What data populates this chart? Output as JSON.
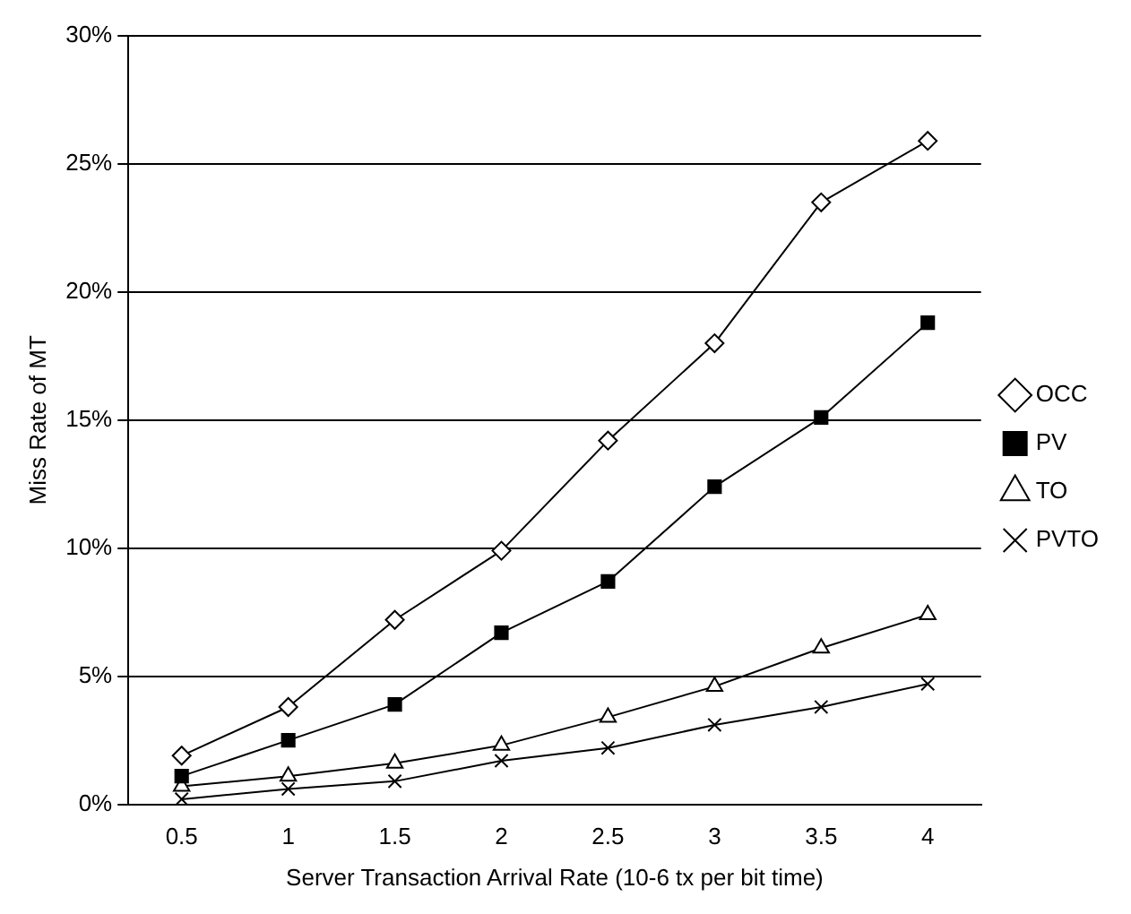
{
  "chart_data": {
    "type": "line",
    "xlabel": "Server Transaction Arrival Rate (10-6 tx per bit time)",
    "ylabel": "Miss Rate of MT",
    "categories": [
      "0.5",
      "1",
      "1.5",
      "2",
      "2.5",
      "3",
      "3.5",
      "4"
    ],
    "series": [
      {
        "name": "OCC",
        "color": "#000000",
        "marker": "diamond",
        "values": [
          1.9,
          3.8,
          7.2,
          9.9,
          14.2,
          18.0,
          23.5,
          25.9
        ]
      },
      {
        "name": "PV",
        "color": "#000000",
        "marker": "square",
        "values": [
          1.1,
          2.5,
          3.9,
          6.7,
          8.7,
          12.4,
          15.1,
          18.8
        ]
      },
      {
        "name": "TO",
        "color": "#000000",
        "marker": "triangle",
        "values": [
          0.7,
          1.1,
          1.6,
          2.3,
          3.4,
          4.6,
          6.1,
          7.4
        ]
      },
      {
        "name": "PVTO",
        "color": "#000000",
        "marker": "cross",
        "values": [
          0.2,
          0.6,
          0.9,
          1.7,
          2.2,
          3.1,
          3.8,
          4.7
        ]
      }
    ],
    "ylim": [
      0,
      30
    ],
    "yticks": [
      {
        "value": 0,
        "label": "0%"
      },
      {
        "value": 5,
        "label": "5%"
      },
      {
        "value": 10,
        "label": "10%"
      },
      {
        "value": 15,
        "label": "15%"
      },
      {
        "value": 20,
        "label": "20%"
      },
      {
        "value": 25,
        "label": "25%"
      },
      {
        "value": 30,
        "label": "30%"
      }
    ],
    "grid": "y",
    "legend": "right",
    "line_style": "solid"
  }
}
